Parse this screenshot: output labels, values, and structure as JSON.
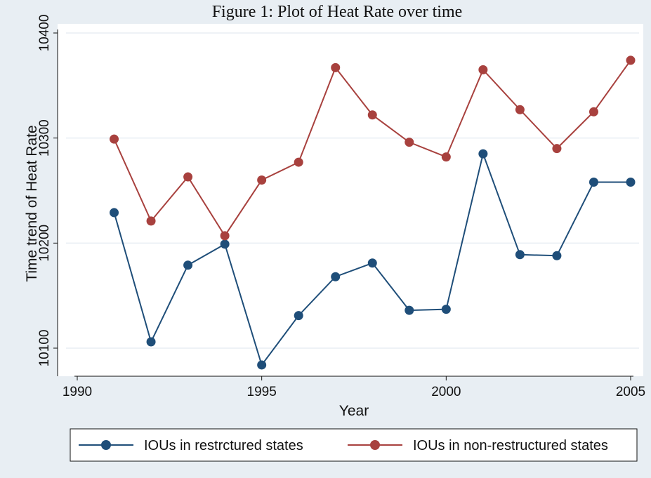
{
  "chart_data": {
    "type": "line",
    "title": "Figure 1: Plot of Heat Rate over time",
    "xlabel": "Year",
    "ylabel": "Time trend of Heat Rate",
    "xlim": [
      1990,
      2005
    ],
    "ylim": [
      10080,
      10405
    ],
    "xticks": [
      1990,
      1995,
      2000,
      2005
    ],
    "yticks": [
      10100,
      10200,
      10300,
      10400
    ],
    "x": [
      1991,
      1992,
      1993,
      1994,
      1995,
      1996,
      1997,
      1998,
      1999,
      2000,
      2001,
      2002,
      2003,
      2004,
      2005
    ],
    "series": [
      {
        "name": "IOUs in restrctured states",
        "color": "#1f4e79",
        "values": [
          10229,
          10106,
          10179,
          10199,
          10084,
          10131,
          10168,
          10181,
          10136,
          10137,
          10285,
          10189,
          10188,
          10258,
          10258
        ]
      },
      {
        "name": "IOUs in non-restructured states",
        "color": "#a8413e",
        "values": [
          10299,
          10221,
          10263,
          10207,
          10260,
          10277,
          10367,
          10322,
          10296,
          10282,
          10365,
          10327,
          10290,
          10325,
          10374
        ]
      }
    ],
    "grid": true,
    "legend_position": "bottom",
    "colors": {
      "outer_background": "#e8eef3",
      "plot_background": "#ffffff",
      "grid": "#e8eef3"
    }
  }
}
